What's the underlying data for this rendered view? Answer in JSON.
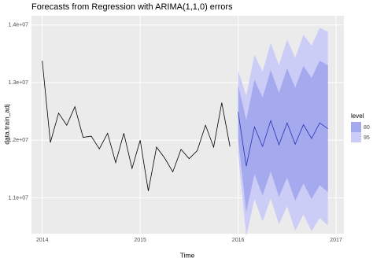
{
  "chart_data": {
    "type": "forecast",
    "title": "Forecasts from Regression with ARIMA(1,1,0) errors",
    "x_label": "Time",
    "y_label": "data.train_adj",
    "xlim": [
      2013.89,
      2017.08
    ],
    "ylim": [
      10378000,
      14160000
    ],
    "xticks": [
      2014,
      2015,
      2016,
      2017
    ],
    "yticks": [
      {
        "value": 11000000,
        "label": "1.1e+07"
      },
      {
        "value": 12000000,
        "label": "1.2e+07"
      },
      {
        "value": 13000000,
        "label": "1.3e+07"
      },
      {
        "value": 14000000,
        "label": "1.4e+07"
      }
    ],
    "grid": true,
    "history": {
      "color": "#000000",
      "x": [
        2014,
        2014.083,
        2014.167,
        2014.25,
        2014.333,
        2014.417,
        2014.5,
        2014.583,
        2014.667,
        2014.75,
        2014.833,
        2014.917,
        2015,
        2015.083,
        2015.167,
        2015.25,
        2015.333,
        2015.417,
        2015.5,
        2015.583,
        2015.667,
        2015.75,
        2015.833,
        2015.917
      ],
      "values": [
        13378000,
        11960000,
        12470000,
        12260000,
        12580000,
        12050000,
        12070000,
        11850000,
        12120000,
        11610000,
        12120000,
        11510000,
        12000000,
        11120000,
        11880000,
        11690000,
        11450000,
        11840000,
        11680000,
        11820000,
        12260000,
        11880000,
        12650000,
        11890000
      ]
    },
    "forecast": {
      "color": "#2a33b5",
      "x": [
        2016,
        2016.083,
        2016.167,
        2016.25,
        2016.333,
        2016.417,
        2016.5,
        2016.583,
        2016.667,
        2016.75,
        2016.833,
        2016.917
      ],
      "values": [
        12490000,
        11550000,
        12230000,
        11890000,
        12340000,
        11920000,
        12300000,
        11930000,
        12270000,
        12030000,
        12300000,
        12200000
      ]
    },
    "legend_title": "level",
    "intervals": [
      {
        "name": "80",
        "color": "#a5a9ee",
        "lower": [
          12020000,
          10750000,
          11410000,
          11040000,
          11460000,
          11020000,
          11350000,
          10950000,
          11250000,
          10980000,
          11220000,
          11100000
        ],
        "upper": [
          12960000,
          12350000,
          13050000,
          12740000,
          13220000,
          12820000,
          13250000,
          12910000,
          13290000,
          13080000,
          13380000,
          13300000
        ]
      },
      {
        "name": "95",
        "color": "#cbcdf6",
        "lower": [
          11770000,
          10330000,
          10980000,
          10590000,
          10990000,
          10540000,
          10850000,
          10430000,
          10710000,
          10420000,
          10650000,
          10520000
        ],
        "upper": [
          13210000,
          12770000,
          13480000,
          13190000,
          13690000,
          13300000,
          13750000,
          13430000,
          13830000,
          13640000,
          13950000,
          13880000
        ]
      }
    ]
  }
}
